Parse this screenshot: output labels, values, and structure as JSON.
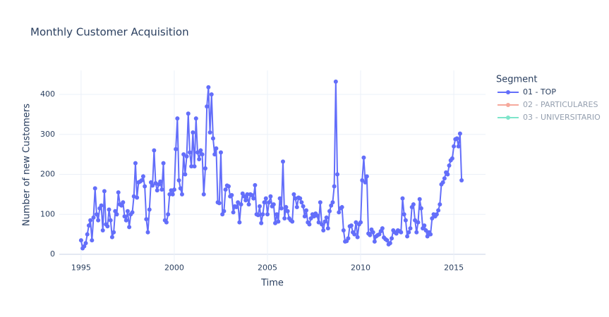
{
  "chart_data": {
    "type": "line",
    "title": "Monthly Customer Acquisition",
    "x_label": "Time",
    "y_label": "Number of new Customers",
    "legend_title": "Segment",
    "xlim": [
      1993.83,
      2016.7
    ],
    "xticks": [
      1995,
      2000,
      2005,
      2010,
      2015
    ],
    "ylim": [
      -22,
      460
    ],
    "yticks": [
      0,
      100,
      200,
      300,
      400
    ],
    "grid": true,
    "x": [
      1995,
      1995.083,
      1995.167,
      1995.25,
      1995.333,
      1995.417,
      1995.5,
      1995.583,
      1995.667,
      1995.75,
      1995.833,
      1995.917,
      1996,
      1996.083,
      1996.167,
      1996.25,
      1996.333,
      1996.417,
      1996.5,
      1996.583,
      1996.667,
      1996.75,
      1996.833,
      1996.917,
      1997,
      1997.083,
      1997.167,
      1997.25,
      1997.333,
      1997.417,
      1997.5,
      1997.583,
      1997.667,
      1997.75,
      1997.833,
      1997.917,
      1998,
      1998.083,
      1998.167,
      1998.25,
      1998.333,
      1998.417,
      1998.5,
      1998.583,
      1998.667,
      1998.75,
      1998.833,
      1998.917,
      1999,
      1999.083,
      1999.167,
      1999.25,
      1999.333,
      1999.417,
      1999.5,
      1999.583,
      1999.667,
      1999.75,
      1999.833,
      1999.917,
      2000,
      2000.083,
      2000.167,
      2000.25,
      2000.333,
      2000.417,
      2000.5,
      2000.583,
      2000.667,
      2000.75,
      2000.833,
      2000.917,
      2001,
      2001.083,
      2001.167,
      2001.25,
      2001.333,
      2001.417,
      2001.5,
      2001.583,
      2001.667,
      2001.75,
      2001.833,
      2001.917,
      2002,
      2002.083,
      2002.167,
      2002.25,
      2002.333,
      2002.417,
      2002.5,
      2002.583,
      2002.667,
      2002.75,
      2002.833,
      2002.917,
      2003,
      2003.083,
      2003.167,
      2003.25,
      2003.333,
      2003.417,
      2003.5,
      2003.583,
      2003.667,
      2003.75,
      2003.833,
      2003.917,
      2004,
      2004.083,
      2004.167,
      2004.25,
      2004.333,
      2004.417,
      2004.5,
      2004.583,
      2004.667,
      2004.75,
      2004.833,
      2004.917,
      2005,
      2005.083,
      2005.167,
      2005.25,
      2005.333,
      2005.417,
      2005.5,
      2005.583,
      2005.667,
      2005.75,
      2005.833,
      2005.917,
      2006,
      2006.083,
      2006.167,
      2006.25,
      2006.333,
      2006.417,
      2006.5,
      2006.583,
      2006.667,
      2006.75,
      2006.833,
      2006.917,
      2007,
      2007.083,
      2007.167,
      2007.25,
      2007.333,
      2007.417,
      2007.5,
      2007.583,
      2007.667,
      2007.75,
      2007.833,
      2007.917,
      2008,
      2008.083,
      2008.167,
      2008.25,
      2008.333,
      2008.417,
      2008.5,
      2008.583,
      2008.667,
      2008.75,
      2008.833,
      2008.917,
      2009,
      2009.083,
      2009.167,
      2009.25,
      2009.333,
      2009.417,
      2009.5,
      2009.583,
      2009.667,
      2009.75,
      2009.833,
      2009.917,
      2010,
      2010.083,
      2010.167,
      2010.25,
      2010.333,
      2010.417,
      2010.5,
      2010.583,
      2010.667,
      2010.75,
      2010.833,
      2010.917,
      2011,
      2011.083,
      2011.167,
      2011.25,
      2011.333,
      2011.417,
      2011.5,
      2011.583,
      2011.667,
      2011.75,
      2011.833,
      2011.917,
      2012,
      2012.083,
      2012.167,
      2012.25,
      2012.333,
      2012.417,
      2012.5,
      2012.583,
      2012.667,
      2012.75,
      2012.833,
      2012.917,
      2013,
      2013.083,
      2013.167,
      2013.25,
      2013.333,
      2013.417,
      2013.5,
      2013.583,
      2013.667,
      2013.75,
      2013.833,
      2013.917,
      2014,
      2014.083,
      2014.167,
      2014.25,
      2014.333,
      2014.417,
      2014.5,
      2014.583,
      2014.667,
      2014.75,
      2014.833,
      2014.917,
      2015,
      2015.083,
      2015.167,
      2015.25,
      2015.333,
      2015.417
    ],
    "series": [
      {
        "name": "01 - TOP",
        "color": "#636efa",
        "values": [
          35,
          15,
          20,
          28,
          50,
          72,
          85,
          35,
          92,
          165,
          100,
          85,
          115,
          122,
          60,
          158,
          75,
          70,
          112,
          85,
          43,
          55,
          108,
          100,
          155,
          125,
          122,
          130,
          95,
          85,
          108,
          68,
          100,
          105,
          145,
          228,
          142,
          180,
          182,
          185,
          195,
          170,
          88,
          55,
          112,
          180,
          172,
          260,
          178,
          160,
          175,
          182,
          162,
          228,
          85,
          80,
          100,
          150,
          160,
          150,
          162,
          263,
          340,
          185,
          165,
          150,
          250,
          200,
          245,
          352,
          255,
          220,
          305,
          220,
          340,
          255,
          238,
          260,
          250,
          150,
          215,
          370,
          418,
          305,
          400,
          290,
          250,
          265,
          130,
          128,
          255,
          100,
          108,
          162,
          172,
          170,
          145,
          148,
          105,
          120,
          118,
          130,
          80,
          125,
          152,
          145,
          135,
          150,
          125,
          150,
          148,
          140,
          173,
          100,
          98,
          120,
          78,
          100,
          130,
          140,
          100,
          130,
          145,
          120,
          125,
          78,
          100,
          82,
          140,
          115,
          232,
          90,
          118,
          108,
          90,
          85,
          82,
          150,
          140,
          118,
          142,
          140,
          130,
          120,
          95,
          110,
          80,
          75,
          90,
          100,
          95,
          102,
          97,
          80,
          130,
          75,
          60,
          82,
          92,
          65,
          108,
          122,
          130,
          170,
          432,
          200,
          105,
          115,
          118,
          60,
          32,
          33,
          40,
          70,
          72,
          55,
          50,
          80,
          43,
          75,
          80,
          185,
          242,
          180,
          195,
          52,
          48,
          62,
          55,
          32,
          45,
          48,
          50,
          58,
          65,
          42,
          38,
          35,
          25,
          28,
          40,
          60,
          55,
          52,
          60,
          58,
          55,
          140,
          100,
          85,
          45,
          55,
          65,
          118,
          125,
          85,
          55,
          80,
          138,
          115,
          65,
          72,
          60,
          45,
          55,
          50,
          90,
          100,
          95,
          100,
          110,
          125,
          175,
          180,
          190,
          205,
          200,
          222,
          235,
          240,
          270,
          288,
          290,
          270,
          302,
          185
        ]
      },
      {
        "name": "02 - PARTICULARES",
        "color": "#EF553B",
        "visible": "legendonly"
      },
      {
        "name": "03 - UNIVERSITARIO",
        "color": "#00cc96",
        "visible": "legendonly"
      }
    ]
  }
}
